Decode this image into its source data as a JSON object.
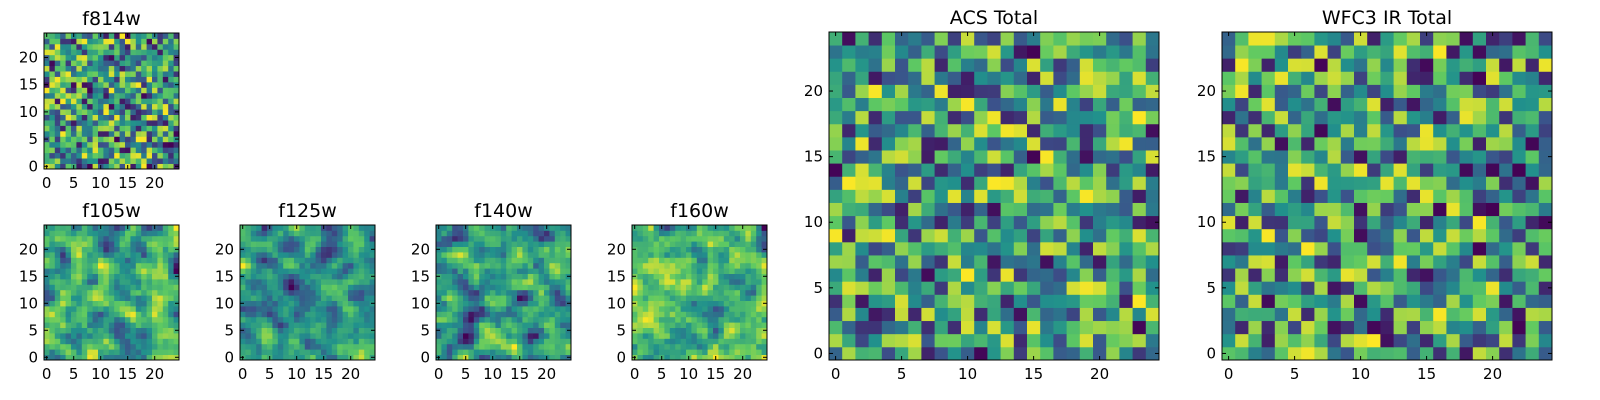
{
  "chart_data": [
    {
      "type": "heatmap",
      "id": "f814w",
      "title": "f814w",
      "grid_size": 25,
      "xticks": [
        0,
        5,
        10,
        15,
        20
      ],
      "yticks": [
        0,
        5,
        10,
        15,
        20
      ],
      "xlim": [
        0,
        25
      ],
      "ylim": [
        0,
        25
      ],
      "colormap": "viridis",
      "seed": 11,
      "smooth": 0
    },
    {
      "type": "heatmap",
      "id": "f105w",
      "title": "f105w",
      "grid_size": 25,
      "xticks": [
        0,
        5,
        10,
        15,
        20
      ],
      "yticks": [
        0,
        5,
        10,
        15,
        20
      ],
      "xlim": [
        0,
        25
      ],
      "ylim": [
        0,
        25
      ],
      "colormap": "viridis",
      "seed": 23,
      "smooth": 1
    },
    {
      "type": "heatmap",
      "id": "f125w",
      "title": "f125w",
      "grid_size": 25,
      "xticks": [
        0,
        5,
        10,
        15,
        20
      ],
      "yticks": [
        0,
        5,
        10,
        15,
        20
      ],
      "xlim": [
        0,
        25
      ],
      "ylim": [
        0,
        25
      ],
      "colormap": "viridis",
      "seed": 37,
      "smooth": 1
    },
    {
      "type": "heatmap",
      "id": "f140w",
      "title": "f140w",
      "grid_size": 25,
      "xticks": [
        0,
        5,
        10,
        15,
        20
      ],
      "yticks": [
        0,
        5,
        10,
        15,
        20
      ],
      "xlim": [
        0,
        25
      ],
      "ylim": [
        0,
        25
      ],
      "colormap": "viridis",
      "seed": 41,
      "smooth": 1
    },
    {
      "type": "heatmap",
      "id": "f160w",
      "title": "f160w",
      "grid_size": 25,
      "xticks": [
        0,
        5,
        10,
        15,
        20
      ],
      "yticks": [
        0,
        5,
        10,
        15,
        20
      ],
      "xlim": [
        0,
        25
      ],
      "ylim": [
        0,
        25
      ],
      "colormap": "viridis",
      "seed": 53,
      "smooth": 1
    },
    {
      "type": "heatmap",
      "id": "acs-total",
      "title": "ACS Total",
      "grid_size": 25,
      "xticks": [
        0,
        5,
        10,
        15,
        20
      ],
      "yticks": [
        0,
        5,
        10,
        15,
        20
      ],
      "xlim": [
        0,
        25
      ],
      "ylim": [
        0,
        25
      ],
      "colormap": "viridis",
      "seed": 67,
      "smooth": 0
    },
    {
      "type": "heatmap",
      "id": "wfc3-ir-total",
      "title": "WFC3 IR Total",
      "grid_size": 25,
      "xticks": [
        0,
        5,
        10,
        15,
        20
      ],
      "yticks": [
        0,
        5,
        10,
        15,
        20
      ],
      "xlim": [
        0,
        25
      ],
      "ylim": [
        0,
        25
      ],
      "colormap": "viridis",
      "seed": 79,
      "smooth": 0
    }
  ],
  "colors": {
    "viridis_stops": [
      "#440154",
      "#3b528b",
      "#21918c",
      "#5ec962",
      "#fde725"
    ],
    "axis": "#000000"
  }
}
